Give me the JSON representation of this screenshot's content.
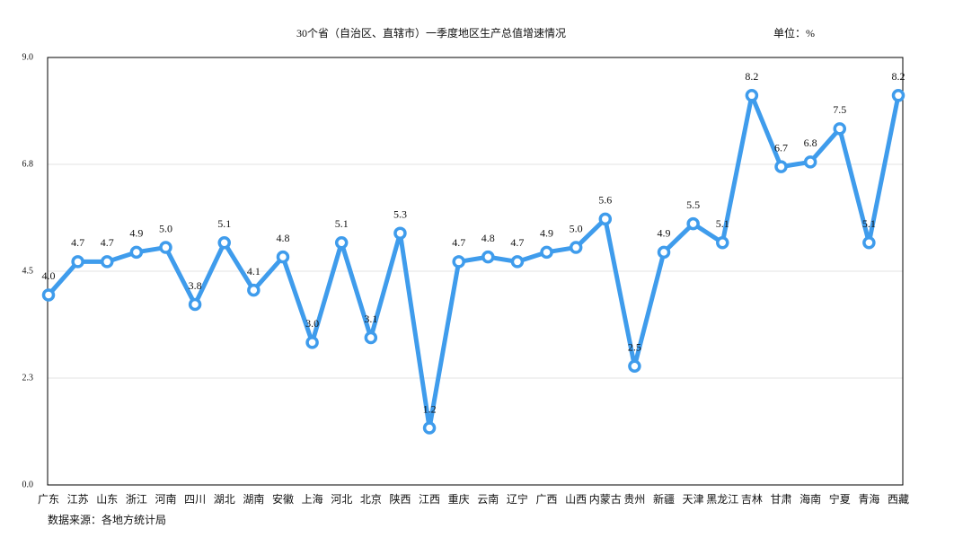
{
  "chart_data": {
    "type": "line",
    "title": "30个省（自治区、直辖市）一季度地区生产总值增速情况",
    "unit": "单位：%",
    "source": "数据来源：各地方统计局",
    "categories": [
      "广东",
      "江苏",
      "山东",
      "浙江",
      "河南",
      "四川",
      "湖北",
      "湖南",
      "安徽",
      "上海",
      "河北",
      "北京",
      "陕西",
      "江西",
      "重庆",
      "云南",
      "辽宁",
      "广西",
      "山西",
      "内蒙古",
      "贵州",
      "新疆",
      "天津",
      "黑龙江",
      "吉林",
      "甘肃",
      "海南",
      "宁夏",
      "青海",
      "西藏"
    ],
    "values": [
      4.0,
      4.7,
      4.7,
      4.9,
      5.0,
      3.8,
      5.1,
      4.1,
      4.8,
      3.0,
      5.1,
      3.1,
      5.3,
      1.2,
      4.7,
      4.8,
      4.7,
      4.9,
      5.0,
      5.6,
      2.5,
      4.9,
      5.5,
      5.1,
      8.2,
      6.7,
      6.8,
      7.5,
      5.1,
      8.2
    ],
    "value_labels": [
      "4.0",
      "4.7",
      "4.7",
      "4.9",
      "5.0",
      "3.8",
      "5.1",
      "4.1",
      "4.8",
      "3.0",
      "5.1",
      "3.1",
      "5.3",
      "1.2",
      "4.7",
      "4.8",
      "4.7",
      "4.9",
      "5.0",
      "5.6",
      "2.5",
      "4.9",
      "5.5",
      "5.1",
      "8.2",
      "6.7",
      "6.8",
      "7.5",
      "5.1",
      "8.2"
    ],
    "color": "#3f9cec",
    "ylim": [
      0,
      9
    ],
    "yticks": [
      {
        "value": 0,
        "label": "0.0"
      },
      {
        "value": 2.25,
        "label": "2.3"
      },
      4.5,
      {
        "value": 6.75,
        "label": "6.8"
      },
      {
        "value": 9,
        "label": "9.0"
      }
    ],
    "grid": true
  }
}
